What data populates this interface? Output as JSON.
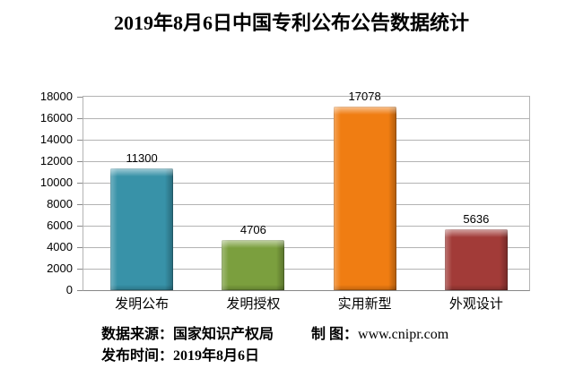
{
  "chart_data": {
    "type": "bar",
    "title": "2019年8月6日中国专利公布公告数据统计",
    "categories": [
      "发明公布",
      "发明授权",
      "实用新型",
      "外观设计"
    ],
    "values": [
      11300,
      4706,
      17078,
      5636
    ],
    "data_labels": [
      "11300",
      "4706",
      "17078",
      "5636"
    ],
    "bar_colors": [
      "#3892A8",
      "#7B9F3E",
      "#F07D12",
      "#A23B38"
    ],
    "xlabel": "",
    "ylabel": "",
    "ylim": [
      0,
      18000
    ],
    "yticks": [
      0,
      2000,
      4000,
      6000,
      8000,
      10000,
      12000,
      14000,
      16000,
      18000
    ],
    "grid": "horizontal",
    "legend_position": "none"
  },
  "footer": {
    "source_label": "数据来源：国家知识产权局",
    "maker_label": "制 图：",
    "maker_url": "www.cnipr.com",
    "publish_label": "发布时间：2019年8月6日"
  },
  "colors": {
    "background": "#FFFFFF",
    "gridline": "#B3B3B3",
    "axis": "#878787",
    "text": "#000000"
  }
}
